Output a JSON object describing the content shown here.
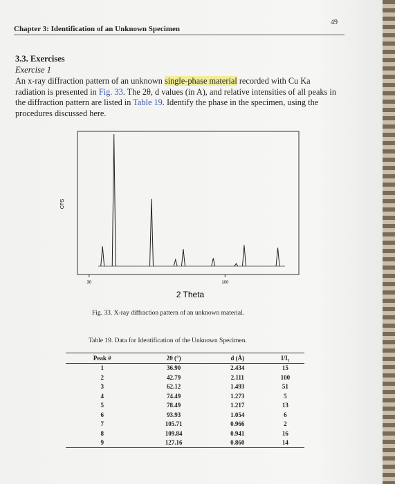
{
  "header": {
    "chapter": "Chapter 3: Identification of an Unknown Specimen",
    "page": "49"
  },
  "section": {
    "heading": "3.3. Exercises",
    "subheading": "Exercise 1",
    "paragraph": [
      "An x-ray diffraction pattern of an unknown ",
      "single-phase material",
      " recorded with Cu Ka radiation is presented in ",
      "Fig. 33",
      ". The 2θ, d values (in A), and relative intensities of all peaks in the diffraction pattern are listed in ",
      "Table 19",
      ". Identify the phase in the specimen, using the procedures discussed here."
    ]
  },
  "figure": {
    "y_label": "CPS",
    "x_label": "2 Theta",
    "xlim": [
      24,
      138
    ],
    "xticks": [
      30,
      100
    ],
    "caption": "Fig. 33. X-ray diffraction pattern of an unknown material."
  },
  "table": {
    "caption": "Table 19. Data for Identification of the Unknown Specimen.",
    "headers": [
      "Peak #",
      "2θ (°)",
      "d (Å)",
      "I/I₁"
    ],
    "rows": [
      [
        "1",
        "36.90",
        "2.434",
        "15"
      ],
      [
        "2",
        "42.79",
        "2.111",
        "100"
      ],
      [
        "3",
        "62.12",
        "1.493",
        "51"
      ],
      [
        "4",
        "74.49",
        "1.273",
        "5"
      ],
      [
        "5",
        "78.49",
        "1.217",
        "13"
      ],
      [
        "6",
        "93.93",
        "1.054",
        "6"
      ],
      [
        "7",
        "105.71",
        "0.966",
        "2"
      ],
      [
        "8",
        "109.84",
        "0.941",
        "16"
      ],
      [
        "9",
        "127.16",
        "0.860",
        "14"
      ]
    ]
  }
}
